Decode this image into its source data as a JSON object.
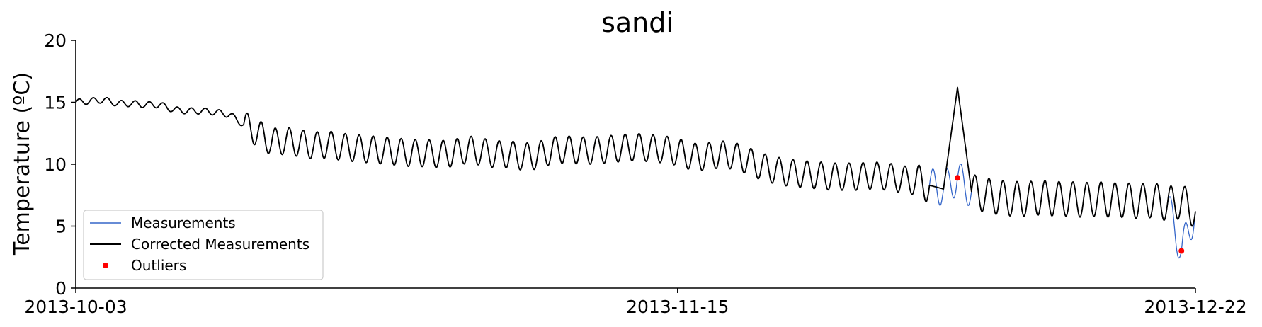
{
  "chart_data": {
    "type": "line",
    "title": "sandi",
    "xlabel": "",
    "ylabel": "Temperature (ºC)",
    "ylim": [
      0,
      20
    ],
    "xlim": [
      "2013-10-03",
      "2013-12-22"
    ],
    "y_ticks": [
      "0",
      "5",
      "10",
      "15",
      "20"
    ],
    "x_ticks": [
      "2013-10-03",
      "2013-11-15",
      "2013-12-22"
    ],
    "grid": false,
    "legend_position": "lower-left",
    "series": [
      {
        "name": "Measurements",
        "color": "#3566c9",
        "points": [
          [
            "2013-10-03",
            15.0
          ],
          [
            "2013-10-04",
            15.1
          ],
          [
            "2013-10-05",
            15.2
          ],
          [
            "2013-10-06",
            14.9
          ],
          [
            "2013-10-07",
            14.9
          ],
          [
            "2013-10-08",
            14.8
          ],
          [
            "2013-10-09",
            14.8
          ],
          [
            "2013-10-10",
            14.4
          ],
          [
            "2013-10-11",
            14.3
          ],
          [
            "2013-10-12",
            14.3
          ],
          [
            "2013-10-13",
            14.2
          ],
          [
            "2013-10-14",
            14.0
          ],
          [
            "2013-10-15",
            13.2
          ],
          [
            "2013-10-16",
            12.5
          ],
          [
            "2013-10-17",
            11.8
          ],
          [
            "2013-10-18",
            11.9
          ],
          [
            "2013-10-19",
            11.7
          ],
          [
            "2013-10-20",
            11.5
          ],
          [
            "2013-10-21",
            11.6
          ],
          [
            "2013-10-22",
            11.4
          ],
          [
            "2013-10-23",
            11.3
          ],
          [
            "2013-10-24",
            11.2
          ],
          [
            "2013-10-25",
            11.1
          ],
          [
            "2013-10-26",
            11.0
          ],
          [
            "2013-10-27",
            10.9
          ],
          [
            "2013-10-28",
            10.9
          ],
          [
            "2013-10-29",
            10.8
          ],
          [
            "2013-10-30",
            10.9
          ],
          [
            "2013-10-31",
            11.2
          ],
          [
            "2013-11-01",
            11.0
          ],
          [
            "2013-11-02",
            10.8
          ],
          [
            "2013-11-03",
            10.8
          ],
          [
            "2013-11-04",
            10.6
          ],
          [
            "2013-11-05",
            10.7
          ],
          [
            "2013-11-06",
            11.1
          ],
          [
            "2013-11-07",
            11.2
          ],
          [
            "2013-11-08",
            11.1
          ],
          [
            "2013-11-09",
            11.1
          ],
          [
            "2013-11-10",
            11.2
          ],
          [
            "2013-11-11",
            11.3
          ],
          [
            "2013-11-12",
            11.4
          ],
          [
            "2013-11-13",
            11.3
          ],
          [
            "2013-11-14",
            11.2
          ],
          [
            "2013-11-15",
            11.0
          ],
          [
            "2013-11-16",
            10.6
          ],
          [
            "2013-11-17",
            10.6
          ],
          [
            "2013-11-18",
            10.8
          ],
          [
            "2013-11-19",
            10.7
          ],
          [
            "2013-11-20",
            10.3
          ],
          [
            "2013-11-21",
            9.8
          ],
          [
            "2013-11-22",
            9.5
          ],
          [
            "2013-11-23",
            9.3
          ],
          [
            "2013-11-24",
            9.2
          ],
          [
            "2013-11-25",
            9.1
          ],
          [
            "2013-11-26",
            9.0
          ],
          [
            "2013-11-27",
            9.0
          ],
          [
            "2013-11-28",
            9.0
          ],
          [
            "2013-11-29",
            9.1
          ],
          [
            "2013-11-30",
            9.0
          ],
          [
            "2013-12-01",
            8.8
          ],
          [
            "2013-12-02",
            8.6
          ],
          [
            "2013-12-03",
            8.3
          ],
          [
            "2013-12-04",
            8.0
          ],
          [
            "2013-12-05",
            8.9
          ],
          [
            "2013-12-06",
            7.8
          ],
          [
            "2013-12-07",
            7.5
          ],
          [
            "2013-12-08",
            7.3
          ],
          [
            "2013-12-09",
            7.2
          ],
          [
            "2013-12-10",
            7.2
          ],
          [
            "2013-12-11",
            7.3
          ],
          [
            "2013-12-12",
            7.2
          ],
          [
            "2013-12-13",
            7.2
          ],
          [
            "2013-12-14",
            7.1
          ],
          [
            "2013-12-15",
            7.2
          ],
          [
            "2013-12-16",
            7.1
          ],
          [
            "2013-12-17",
            7.1
          ],
          [
            "2013-12-18",
            7.0
          ],
          [
            "2013-12-19",
            7.1
          ],
          [
            "2013-12-20",
            6.8
          ],
          [
            "2013-12-21",
            3.0
          ],
          [
            "2013-12-22",
            6.2
          ]
        ]
      },
      {
        "name": "Corrected Measurements",
        "color": "#000000",
        "points": [
          [
            "2013-10-03",
            15.0
          ],
          [
            "2013-10-04",
            15.1
          ],
          [
            "2013-10-05",
            15.2
          ],
          [
            "2013-10-06",
            14.9
          ],
          [
            "2013-10-07",
            14.9
          ],
          [
            "2013-10-08",
            14.8
          ],
          [
            "2013-10-09",
            14.8
          ],
          [
            "2013-10-10",
            14.4
          ],
          [
            "2013-10-11",
            14.3
          ],
          [
            "2013-10-12",
            14.3
          ],
          [
            "2013-10-13",
            14.2
          ],
          [
            "2013-10-14",
            14.0
          ],
          [
            "2013-10-15",
            13.2
          ],
          [
            "2013-10-16",
            12.5
          ],
          [
            "2013-10-17",
            11.8
          ],
          [
            "2013-10-18",
            11.9
          ],
          [
            "2013-10-19",
            11.7
          ],
          [
            "2013-10-20",
            11.5
          ],
          [
            "2013-10-21",
            11.6
          ],
          [
            "2013-10-22",
            11.4
          ],
          [
            "2013-10-23",
            11.3
          ],
          [
            "2013-10-24",
            11.2
          ],
          [
            "2013-10-25",
            11.1
          ],
          [
            "2013-10-26",
            11.0
          ],
          [
            "2013-10-27",
            10.9
          ],
          [
            "2013-10-28",
            10.9
          ],
          [
            "2013-10-29",
            10.8
          ],
          [
            "2013-10-30",
            10.9
          ],
          [
            "2013-10-31",
            11.2
          ],
          [
            "2013-11-01",
            11.0
          ],
          [
            "2013-11-02",
            10.8
          ],
          [
            "2013-11-03",
            10.8
          ],
          [
            "2013-11-04",
            10.6
          ],
          [
            "2013-11-05",
            10.7
          ],
          [
            "2013-11-06",
            11.1
          ],
          [
            "2013-11-07",
            11.2
          ],
          [
            "2013-11-08",
            11.1
          ],
          [
            "2013-11-09",
            11.1
          ],
          [
            "2013-11-10",
            11.2
          ],
          [
            "2013-11-11",
            11.3
          ],
          [
            "2013-11-12",
            11.4
          ],
          [
            "2013-11-13",
            11.3
          ],
          [
            "2013-11-14",
            11.2
          ],
          [
            "2013-11-15",
            11.0
          ],
          [
            "2013-11-16",
            10.6
          ],
          [
            "2013-11-17",
            10.6
          ],
          [
            "2013-11-18",
            10.8
          ],
          [
            "2013-11-19",
            10.7
          ],
          [
            "2013-11-20",
            10.3
          ],
          [
            "2013-11-21",
            9.8
          ],
          [
            "2013-11-22",
            9.5
          ],
          [
            "2013-11-23",
            9.3
          ],
          [
            "2013-11-24",
            9.2
          ],
          [
            "2013-11-25",
            9.1
          ],
          [
            "2013-11-26",
            9.0
          ],
          [
            "2013-11-27",
            9.0
          ],
          [
            "2013-11-28",
            9.0
          ],
          [
            "2013-11-29",
            9.1
          ],
          [
            "2013-11-30",
            9.0
          ],
          [
            "2013-12-01",
            8.8
          ],
          [
            "2013-12-02",
            8.6
          ],
          [
            "2013-12-03",
            8.3
          ],
          [
            "2013-12-04",
            8.0
          ],
          [
            "2013-12-05",
            16.2
          ],
          [
            "2013-12-06",
            7.8
          ],
          [
            "2013-12-07",
            7.5
          ],
          [
            "2013-12-08",
            7.3
          ],
          [
            "2013-12-09",
            7.2
          ],
          [
            "2013-12-10",
            7.2
          ],
          [
            "2013-12-11",
            7.3
          ],
          [
            "2013-12-12",
            7.2
          ],
          [
            "2013-12-13",
            7.2
          ],
          [
            "2013-12-14",
            7.1
          ],
          [
            "2013-12-15",
            7.2
          ],
          [
            "2013-12-16",
            7.1
          ],
          [
            "2013-12-17",
            7.1
          ],
          [
            "2013-12-18",
            7.0
          ],
          [
            "2013-12-19",
            7.1
          ],
          [
            "2013-12-20",
            6.8
          ],
          [
            "2013-12-21",
            7.0
          ],
          [
            "2013-12-22",
            6.2
          ]
        ]
      },
      {
        "name": "Outliers",
        "color": "#ff0000",
        "points": [
          [
            "2013-12-05",
            8.9
          ],
          [
            "2013-12-21",
            3.0
          ]
        ]
      }
    ]
  }
}
